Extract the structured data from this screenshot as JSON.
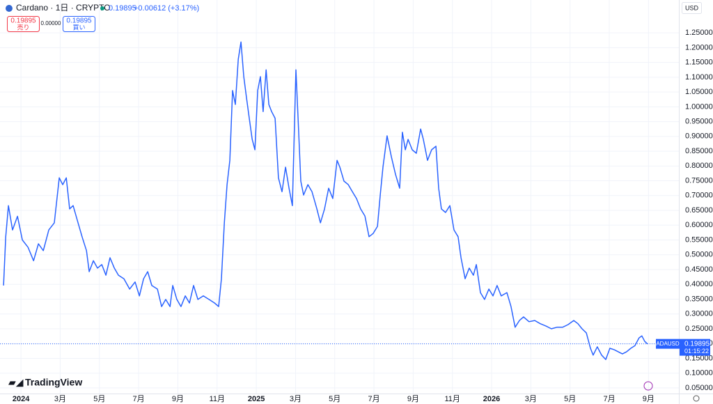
{
  "header": {
    "symbol": "Cardano · 1日 · CRYPTO",
    "price": "0.19895",
    "change": "+0.00612 (+3.17%)",
    "sell_price": "0.19895",
    "sell_label": "売り",
    "spread": "0.00000",
    "buy_price": "0.19895",
    "buy_label": "買い",
    "currency": "USD",
    "ticker": "ADAUSD",
    "countdown": "01:15:22",
    "brand": "TradingView"
  },
  "chart_data": {
    "type": "line",
    "x": [
      -0.89,
      -0.78,
      -0.64,
      -0.43,
      -0.18,
      0.07,
      0.36,
      0.64,
      0.89,
      1.14,
      1.42,
      1.7,
      1.95,
      2.13,
      2.31,
      2.48,
      2.66,
      2.91,
      3.12,
      3.34,
      3.48,
      3.69,
      3.9,
      4.12,
      4.33,
      4.54,
      4.76,
      4.97,
      5.25,
      5.54,
      5.82,
      6.04,
      6.25,
      6.46,
      6.67,
      6.96,
      7.17,
      7.38,
      7.6,
      7.74,
      7.95,
      8.16,
      8.38,
      8.59,
      8.8,
      9.02,
      9.3,
      9.59,
      9.87,
      10.08,
      10.22,
      10.37,
      10.51,
      10.65,
      10.79,
      10.93,
      11.08,
      11.22,
      11.36,
      11.5,
      11.64,
      11.79,
      11.93,
      12.07,
      12.21,
      12.35,
      12.5,
      12.64,
      12.78,
      12.96,
      13.13,
      13.31,
      13.49,
      13.67,
      13.84,
      14.02,
      14.13,
      14.27,
      14.41,
      14.63,
      14.84,
      15.09,
      15.27,
      15.48,
      15.69,
      15.9,
      16.12,
      16.26,
      16.47,
      16.69,
      16.9,
      17.11,
      17.32,
      17.54,
      17.75,
      17.96,
      18.18,
      18.32,
      18.46,
      18.67,
      18.89,
      19.1,
      19.31,
      19.45,
      19.6,
      19.74,
      19.95,
      20.16,
      20.38,
      20.52,
      20.73,
      20.94,
      21.16,
      21.3,
      21.44,
      21.65,
      21.87,
      22.08,
      22.29,
      22.44,
      22.65,
      22.86,
      23.07,
      23.22,
      23.43,
      23.64,
      23.86,
      24.07,
      24.28,
      24.49,
      24.78,
      24.99,
      25.2,
      25.42,
      25.63,
      25.91,
      26.2,
      26.48,
      26.77,
      27.05,
      27.33,
      27.62,
      27.9,
      28.19,
      28.4,
      28.61,
      28.83,
      29.04,
      29.18,
      29.39,
      29.61,
      29.82,
      30.03,
      30.25,
      30.46,
      30.67,
      30.88,
      31.1,
      31.31,
      31.52,
      31.66,
      31.81,
      31.95
    ],
    "series": [
      {
        "name": "ADAUSD",
        "color": "#2962ff",
        "values": [
          0.396,
          0.56,
          0.666,
          0.584,
          0.63,
          0.55,
          0.525,
          0.48,
          0.537,
          0.514,
          0.584,
          0.608,
          0.76,
          0.737,
          0.76,
          0.655,
          0.666,
          0.608,
          0.56,
          0.514,
          0.443,
          0.48,
          0.455,
          0.467,
          0.431,
          0.49,
          0.455,
          0.431,
          0.419,
          0.384,
          0.408,
          0.361,
          0.419,
          0.443,
          0.396,
          0.384,
          0.325,
          0.349,
          0.325,
          0.396,
          0.349,
          0.325,
          0.361,
          0.337,
          0.396,
          0.349,
          0.361,
          0.349,
          0.337,
          0.325,
          0.419,
          0.608,
          0.737,
          0.819,
          1.055,
          1.008,
          1.161,
          1.219,
          1.102,
          1.031,
          0.961,
          0.89,
          0.855,
          1.055,
          1.102,
          0.984,
          1.125,
          1.008,
          0.984,
          0.961,
          0.76,
          0.713,
          0.796,
          0.725,
          0.666,
          1.125,
          0.961,
          0.749,
          0.702,
          0.737,
          0.713,
          0.655,
          0.608,
          0.655,
          0.725,
          0.69,
          0.819,
          0.796,
          0.749,
          0.737,
          0.713,
          0.69,
          0.655,
          0.631,
          0.561,
          0.572,
          0.596,
          0.702,
          0.796,
          0.902,
          0.831,
          0.772,
          0.725,
          0.914,
          0.855,
          0.89,
          0.855,
          0.843,
          0.925,
          0.89,
          0.819,
          0.855,
          0.867,
          0.725,
          0.655,
          0.643,
          0.666,
          0.584,
          0.561,
          0.49,
          0.419,
          0.455,
          0.431,
          0.467,
          0.372,
          0.349,
          0.384,
          0.361,
          0.396,
          0.361,
          0.372,
          0.325,
          0.255,
          0.278,
          0.29,
          0.274,
          0.278,
          0.267,
          0.259,
          0.25,
          0.255,
          0.255,
          0.264,
          0.278,
          0.267,
          0.25,
          0.236,
          0.184,
          0.161,
          0.189,
          0.161,
          0.146,
          0.184,
          0.179,
          0.172,
          0.165,
          0.172,
          0.184,
          0.193,
          0.219,
          0.226,
          0.207,
          0.19895
        ]
      }
    ],
    "xlim": [
      -1.07,
      33.55
    ],
    "xticks": [
      {
        "value": 0,
        "label": "2024"
      },
      {
        "value": 2,
        "label": "3月"
      },
      {
        "value": 4,
        "label": "5月"
      },
      {
        "value": 6,
        "label": "7月"
      },
      {
        "value": 8,
        "label": "9月"
      },
      {
        "value": 10,
        "label": "11月"
      },
      {
        "value": 12,
        "label": "2025"
      },
      {
        "value": 14,
        "label": "3月"
      },
      {
        "value": 16,
        "label": "5月"
      },
      {
        "value": 18,
        "label": "7月"
      },
      {
        "value": 20,
        "label": "9月"
      },
      {
        "value": 22,
        "label": "11月"
      },
      {
        "value": 24,
        "label": "2026"
      },
      {
        "value": 26,
        "label": "3月"
      },
      {
        "value": 28,
        "label": "5月"
      },
      {
        "value": 30,
        "label": "7月"
      },
      {
        "value": 32,
        "label": "9月"
      }
    ],
    "ylim": [
      0.031,
      1.361
    ],
    "yticks": [
      {
        "value": 0.05,
        "label": "0.05000"
      },
      {
        "value": 0.1,
        "label": "0.10000"
      },
      {
        "value": 0.15,
        "label": "0.15000"
      },
      {
        "value": 0.2,
        "label": "0.20000"
      },
      {
        "value": 0.25,
        "label": "0.25000"
      },
      {
        "value": 0.3,
        "label": "0.30000"
      },
      {
        "value": 0.35,
        "label": "0.35000"
      },
      {
        "value": 0.4,
        "label": "0.40000"
      },
      {
        "value": 0.45,
        "label": "0.45000"
      },
      {
        "value": 0.5,
        "label": "0.50000"
      },
      {
        "value": 0.55,
        "label": "0.55000"
      },
      {
        "value": 0.6,
        "label": "0.60000"
      },
      {
        "value": 0.65,
        "label": "0.65000"
      },
      {
        "value": 0.7,
        "label": "0.70000"
      },
      {
        "value": 0.75,
        "label": "0.75000"
      },
      {
        "value": 0.8,
        "label": "0.80000"
      },
      {
        "value": 0.85,
        "label": "0.85000"
      },
      {
        "value": 0.9,
        "label": "0.90000"
      },
      {
        "value": 0.95,
        "label": "0.95000"
      },
      {
        "value": 1.0,
        "label": "1.00000"
      },
      {
        "value": 1.05,
        "label": "1.05000"
      },
      {
        "value": 1.1,
        "label": "1.10000"
      },
      {
        "value": 1.15,
        "label": "1.15000"
      },
      {
        "value": 1.2,
        "label": "1.20000"
      },
      {
        "value": 1.25,
        "label": "1.25000"
      }
    ],
    "grid": true
  }
}
